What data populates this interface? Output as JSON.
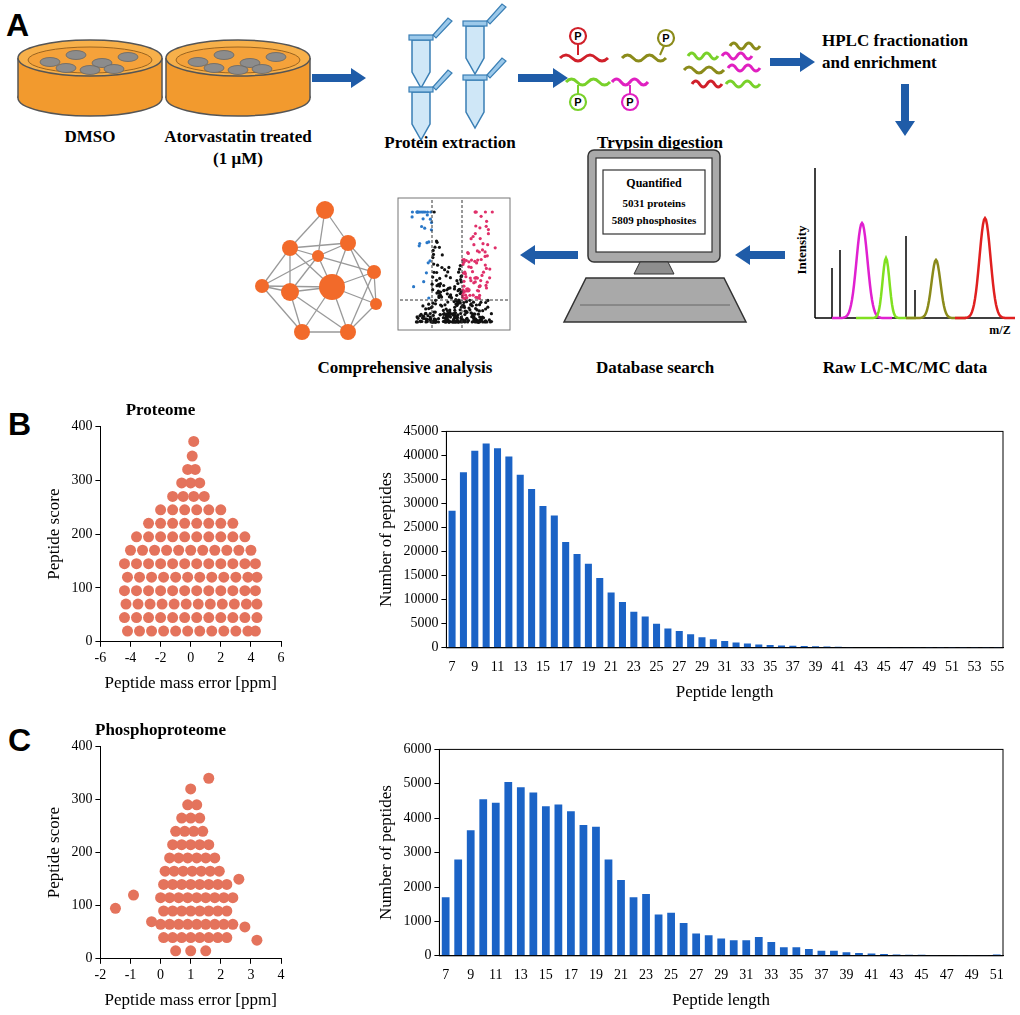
{
  "diagram": {
    "panel_label": "A",
    "treatments": [
      {
        "label": "DMSO"
      },
      {
        "label": "Atorvastatin treated",
        "dose": "(1 μM)"
      }
    ],
    "steps": {
      "extraction": "Protein extraction",
      "digestion": "Trypsin digestion",
      "fractionation": [
        "HPLC fractionation",
        "and enrichment"
      ],
      "raw_data": "Raw LC-MC/MC data",
      "search": "Database search",
      "analysis": "Comprehensive analysis"
    },
    "phospho_mark": "P",
    "spectrum": {
      "y_label": "Intensity",
      "x_label": "m/Z"
    },
    "screen": {
      "title": "Quantified",
      "lines": [
        "5031 proteins",
        "5809 phosphosites"
      ]
    }
  },
  "chart_data": [
    {
      "type": "scatter",
      "panel_label": "B",
      "title": "Proteome",
      "x_label": "Peptide mass error [ppm]",
      "y_label": "Peptide score",
      "color": "#e4735c",
      "x": [
        -4.2,
        -3.4,
        -2.6,
        -1.8,
        -1,
        -0.2,
        0.6,
        1.4,
        2.2,
        3,
        3.8,
        4.3,
        -4.4,
        -3.6,
        -2.8,
        -2,
        -1.2,
        -0.4,
        0.4,
        1.2,
        2,
        2.8,
        3.6,
        4.4,
        -4.3,
        -3.5,
        -2.7,
        -1.9,
        -1.1,
        -0.3,
        0.5,
        1.3,
        2.1,
        2.9,
        3.7,
        4.4,
        -4.4,
        -3.6,
        -2.8,
        -2,
        -1.2,
        -0.4,
        0.4,
        1.2,
        2,
        2.8,
        3.6,
        4.3,
        -4.2,
        -3.4,
        -2.6,
        -1.8,
        -1,
        -0.2,
        0.6,
        1.4,
        2.2,
        3,
        3.8,
        4.4,
        -4.4,
        -3.6,
        -2.8,
        -2,
        -1.2,
        -0.4,
        0.4,
        1.2,
        2,
        2.8,
        3.6,
        4.3,
        -4,
        -3.2,
        -2.4,
        -1.6,
        -0.8,
        0,
        0.8,
        1.6,
        2.4,
        3.2,
        4,
        -3.6,
        -2.8,
        -2,
        -1.2,
        -0.4,
        0.4,
        1.2,
        2,
        2.8,
        3.6,
        -2.8,
        -2,
        -1.2,
        -0.4,
        0.4,
        1.2,
        2,
        2.8,
        -2,
        -1.2,
        -0.4,
        0.4,
        1.2,
        2,
        -1.2,
        -0.5,
        0.2,
        0.9,
        -0.6,
        0,
        0.6,
        -0.2,
        0.3,
        0.1,
        0.2
      ],
      "values": [
        20,
        20,
        20,
        20,
        20,
        20,
        20,
        20,
        20,
        20,
        20,
        20,
        45,
        45,
        45,
        45,
        45,
        45,
        45,
        45,
        45,
        45,
        45,
        45,
        70,
        70,
        70,
        70,
        70,
        70,
        70,
        70,
        70,
        70,
        70,
        70,
        95,
        95,
        95,
        95,
        95,
        95,
        95,
        95,
        95,
        95,
        95,
        95,
        120,
        120,
        120,
        120,
        120,
        120,
        120,
        120,
        120,
        120,
        120,
        120,
        145,
        145,
        145,
        145,
        145,
        145,
        145,
        145,
        145,
        145,
        145,
        145,
        170,
        170,
        170,
        170,
        170,
        170,
        170,
        170,
        170,
        170,
        170,
        195,
        195,
        195,
        195,
        195,
        195,
        195,
        195,
        195,
        195,
        220,
        220,
        220,
        220,
        220,
        220,
        220,
        220,
        245,
        245,
        245,
        245,
        245,
        245,
        270,
        270,
        270,
        270,
        295,
        295,
        295,
        320,
        320,
        345,
        372
      ],
      "xlim": [
        -6,
        6
      ],
      "xticks": [
        -6,
        -4,
        -2,
        0,
        2,
        4,
        6
      ],
      "ylim": [
        0,
        400
      ],
      "yticks": [
        0,
        100,
        200,
        300,
        400
      ],
      "grid": false
    },
    {
      "type": "bar",
      "x_label": "Peptide length",
      "y_label": "Number of peptides",
      "color": "#1b63c6",
      "categories": [
        "7",
        null,
        "9",
        null,
        "11",
        null,
        "13",
        null,
        "15",
        null,
        "17",
        null,
        "19",
        null,
        "21",
        null,
        "23",
        null,
        "25",
        null,
        "27",
        null,
        "29",
        null,
        "31",
        null,
        "33",
        null,
        "35",
        null,
        "37",
        null,
        "39",
        null,
        "41",
        null,
        "43",
        null,
        "45",
        null,
        "47",
        null,
        "49",
        null,
        "51",
        null,
        "53",
        null,
        "55"
      ],
      "values": [
        28500,
        36500,
        41000,
        42500,
        41500,
        39800,
        36000,
        33000,
        29500,
        27500,
        22000,
        19500,
        17500,
        14500,
        11500,
        9500,
        7500,
        6500,
        5000,
        4000,
        3500,
        2800,
        2200,
        1800,
        1400,
        1100,
        900,
        700,
        600,
        500,
        450,
        350,
        300,
        250,
        200,
        150,
        120,
        100,
        80,
        60,
        50,
        40,
        30,
        25,
        20,
        15,
        10,
        8,
        5
      ],
      "ylim": [
        0,
        45000
      ],
      "yticks": [
        0,
        5000,
        10000,
        15000,
        20000,
        25000,
        30000,
        35000,
        40000,
        45000
      ],
      "grid": false
    },
    {
      "type": "scatter",
      "panel_label": "C",
      "title": "Phosphoproteome",
      "x_label": "Peptide mass error [ppm]",
      "y_label": "Peptide score",
      "color": "#e4735c",
      "x": [
        0.5,
        1,
        1.5,
        0.1,
        0.4,
        0.7,
        1,
        1.3,
        1.6,
        1.9,
        2.2,
        0,
        0.3,
        0.6,
        0.9,
        1.2,
        1.5,
        1.8,
        2.1,
        2.4,
        0.1,
        0.4,
        0.7,
        1,
        1.3,
        1.6,
        1.9,
        2.2,
        0,
        0.3,
        0.6,
        0.9,
        1.2,
        1.5,
        1.8,
        2.1,
        2.4,
        0.1,
        0.4,
        0.7,
        1,
        1.3,
        1.6,
        1.9,
        2.2,
        0.15,
        0.45,
        0.75,
        1.05,
        1.35,
        1.65,
        1.95,
        0.3,
        0.6,
        0.9,
        1.2,
        1.5,
        1.8,
        0.4,
        0.7,
        1,
        1.3,
        1.6,
        0.5,
        0.8,
        1.1,
        1.4,
        0.7,
        1,
        1.3,
        0.9,
        1.2,
        1,
        -1.5,
        -0.9,
        2.8,
        3.2,
        2.6,
        1.6,
        -0.3
      ],
      "values": [
        15,
        15,
        15,
        40,
        40,
        40,
        40,
        40,
        40,
        40,
        40,
        65,
        65,
        65,
        65,
        65,
        65,
        65,
        65,
        65,
        90,
        90,
        90,
        90,
        90,
        90,
        90,
        90,
        115,
        115,
        115,
        115,
        115,
        115,
        115,
        115,
        115,
        140,
        140,
        140,
        140,
        140,
        140,
        140,
        140,
        165,
        165,
        165,
        165,
        165,
        165,
        165,
        190,
        190,
        190,
        190,
        190,
        190,
        215,
        215,
        215,
        215,
        215,
        240,
        240,
        240,
        240,
        265,
        265,
        265,
        290,
        290,
        320,
        95,
        120,
        60,
        35,
        150,
        340,
        70
      ],
      "xlim": [
        -2,
        4
      ],
      "xticks": [
        -2,
        -1,
        0,
        1,
        2,
        3,
        4
      ],
      "ylim": [
        0,
        400
      ],
      "yticks": [
        0,
        100,
        200,
        300,
        400
      ],
      "grid": false
    },
    {
      "type": "bar",
      "x_label": "Peptide length",
      "y_label": "Number of peptides",
      "color": "#1b63c6",
      "categories": [
        "7",
        null,
        "9",
        null,
        "11",
        null,
        "13",
        null,
        "15",
        null,
        "17",
        null,
        "19",
        null,
        "21",
        null,
        "23",
        null,
        "25",
        null,
        "27",
        null,
        "29",
        null,
        "31",
        null,
        "33",
        null,
        "35",
        null,
        "37",
        null,
        "39",
        null,
        "41",
        null,
        "43",
        null,
        "45",
        null,
        "47",
        null,
        "49",
        null,
        "51"
      ],
      "values": [
        1700,
        2800,
        3650,
        4550,
        4450,
        5050,
        4900,
        4750,
        4350,
        4400,
        4200,
        3800,
        3750,
        2800,
        2200,
        1700,
        1800,
        1200,
        1250,
        950,
        650,
        600,
        500,
        450,
        450,
        550,
        400,
        250,
        250,
        200,
        150,
        150,
        100,
        80,
        70,
        50,
        40,
        30,
        30,
        20,
        15,
        10,
        10,
        10,
        40
      ],
      "ylim": [
        0,
        6000
      ],
      "yticks": [
        0,
        1000,
        2000,
        3000,
        4000,
        5000,
        6000
      ],
      "grid": false
    }
  ]
}
